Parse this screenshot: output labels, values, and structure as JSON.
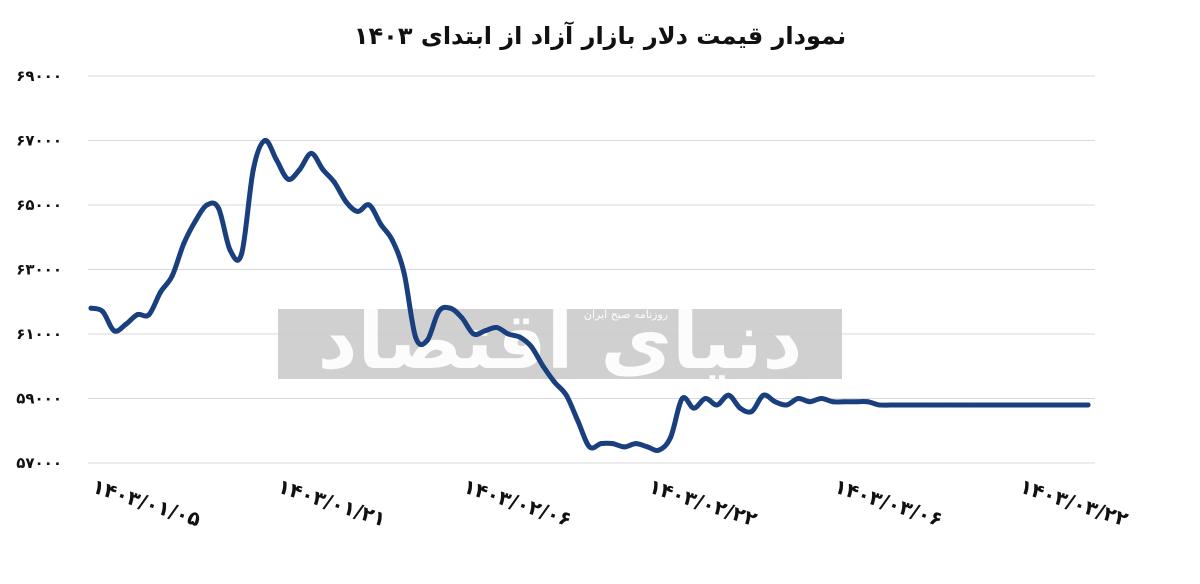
{
  "chart_data": {
    "type": "line",
    "title": "نمودار قیمت دلار بازار آزاد از ابتدای ۱۴۰۳",
    "xlabel": "",
    "ylabel": "",
    "ylim": [
      57000,
      69000
    ],
    "yticks": [
      57000,
      59000,
      61000,
      63000,
      65000,
      67000,
      69000
    ],
    "ytick_labels": [
      "۵۷۰۰۰",
      "۵۹۰۰۰",
      "۶۱۰۰۰",
      "۶۳۰۰۰",
      "۶۵۰۰۰",
      "۶۷۰۰۰",
      "۶۹۰۰۰"
    ],
    "x_tick_labels": [
      "۱۴۰۳/۰۱/۰۵",
      "۱۴۰۳/۰۱/۲۱",
      "۱۴۰۳/۰۲/۰۶",
      "۱۴۰۳/۰۲/۲۲",
      "۱۴۰۳/۰۳/۰۶",
      "۱۴۰۳/۰۳/۲۲"
    ],
    "x_tick_positions": [
      0,
      16,
      32,
      48,
      64,
      80
    ],
    "grid": true,
    "legend": "none",
    "color": "#1a3f7e",
    "x": [
      0,
      1,
      2,
      3,
      4,
      5,
      6,
      7,
      8,
      9,
      10,
      11,
      12,
      13,
      14,
      15,
      16,
      17,
      18,
      19,
      20,
      21,
      22,
      23,
      24,
      25,
      26,
      27,
      28,
      29,
      30,
      31,
      32,
      33,
      34,
      35,
      36,
      37,
      38,
      39,
      40,
      41,
      42,
      43,
      44,
      45,
      46,
      47,
      48,
      49,
      50,
      51,
      52,
      53,
      54,
      55,
      56,
      57,
      58,
      59,
      60,
      61,
      62,
      63,
      64,
      65,
      66,
      67,
      68,
      69,
      70,
      71,
      72,
      73,
      74,
      75,
      76,
      77,
      78,
      79,
      80,
      81,
      82,
      83,
      84,
      85,
      86
    ],
    "values": [
      61800,
      61700,
      61100,
      61300,
      61600,
      61600,
      62300,
      62800,
      63800,
      64500,
      65000,
      64900,
      63600,
      63500,
      66100,
      67000,
      66400,
      65800,
      66100,
      66600,
      66100,
      65700,
      65100,
      64800,
      65000,
      64400,
      63900,
      62900,
      60900,
      60800,
      61700,
      61800,
      61500,
      61000,
      61100,
      61200,
      61000,
      60900,
      60600,
      60000,
      59500,
      59100,
      58300,
      57500,
      57600,
      57600,
      57500,
      57600,
      57500,
      57400,
      57800,
      59000,
      58700,
      59000,
      58800,
      59100,
      58700,
      58600,
      59100,
      58900,
      58800,
      59000,
      58900,
      59000,
      58900,
      58900,
      58900,
      58900,
      58800,
      58800,
      58800,
      58800,
      58800,
      58800,
      58800,
      58800,
      58800,
      58800,
      58800,
      58800,
      58800,
      58800,
      58800,
      58800,
      58800,
      58800,
      58800
    ],
    "watermark": {
      "main": "دنیای اقتصاد",
      "tagline": "روزنامه صبح ایران"
    }
  }
}
